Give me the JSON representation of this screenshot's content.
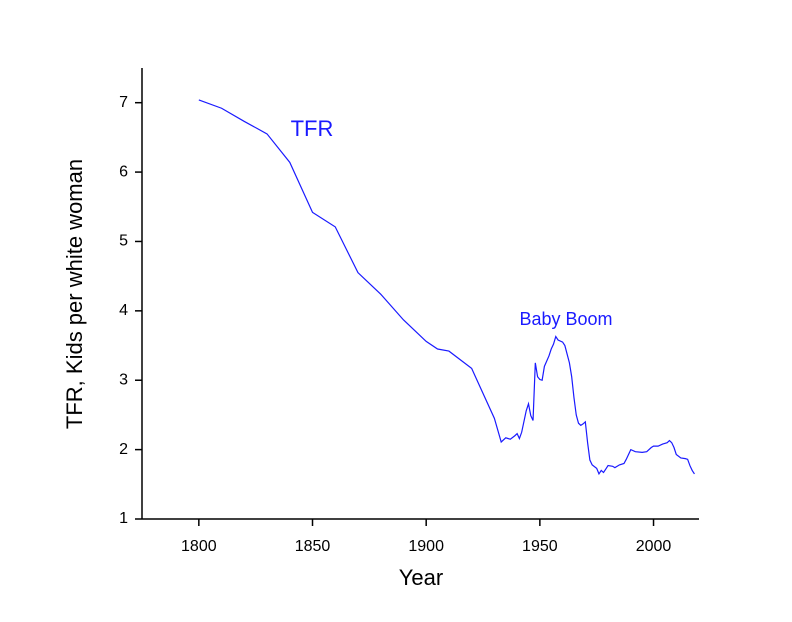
{
  "chart_data": {
    "type": "line",
    "x_label": "Year",
    "y_label": "TFR, Kids per white woman",
    "annotations": [
      "TFR",
      "Baby Boom"
    ],
    "x": [
      1800,
      1810,
      1820,
      1830,
      1840,
      1850,
      1860,
      1870,
      1880,
      1890,
      1900,
      1905,
      1910,
      1920,
      1930,
      1933,
      1935,
      1937,
      1939,
      1940,
      1941,
      1942,
      1944,
      1945,
      1946,
      1947,
      1948,
      1949,
      1950,
      1951,
      1952,
      1954,
      1955,
      1956,
      1957,
      1958,
      1960,
      1961,
      1963,
      1964,
      1965,
      1966,
      1967,
      1968,
      1969,
      1970,
      1971,
      1972,
      1973,
      1975,
      1976,
      1977,
      1978,
      1979,
      1980,
      1982,
      1983,
      1985,
      1987,
      1988,
      1989,
      1990,
      1992,
      1995,
      1997,
      1999,
      2000,
      2002,
      2004,
      2006,
      2007,
      2008,
      2009,
      2010,
      2012,
      2014,
      2015,
      2016,
      2017,
      2018
    ],
    "series": [
      {
        "name": "TFR",
        "color": "#1a1aff",
        "values": [
          7.04,
          6.92,
          6.73,
          6.55,
          6.14,
          5.42,
          5.21,
          4.55,
          4.24,
          3.87,
          3.56,
          3.45,
          3.42,
          3.17,
          2.45,
          2.11,
          2.17,
          2.15,
          2.2,
          2.23,
          2.16,
          2.25,
          2.56,
          2.66,
          2.49,
          2.42,
          3.25,
          3.05,
          3.01,
          3.0,
          3.2,
          3.35,
          3.45,
          3.52,
          3.63,
          3.58,
          3.55,
          3.5,
          3.25,
          3.05,
          2.75,
          2.5,
          2.38,
          2.35,
          2.37,
          2.4,
          2.1,
          1.85,
          1.78,
          1.73,
          1.65,
          1.7,
          1.67,
          1.72,
          1.77,
          1.76,
          1.74,
          1.78,
          1.8,
          1.86,
          1.93,
          2.0,
          1.97,
          1.96,
          1.97,
          2.03,
          2.05,
          2.05,
          2.08,
          2.1,
          2.13,
          2.1,
          2.03,
          1.93,
          1.88,
          1.87,
          1.86,
          1.77,
          1.7,
          1.65
        ]
      }
    ],
    "xlim": [
      1775,
      2020
    ],
    "xticks": [
      1800,
      1850,
      1900,
      1950,
      2000
    ],
    "ylim": [
      1,
      7.5
    ],
    "yticks": [
      1,
      2,
      3,
      4,
      5,
      6,
      7
    ],
    "grid": false
  }
}
